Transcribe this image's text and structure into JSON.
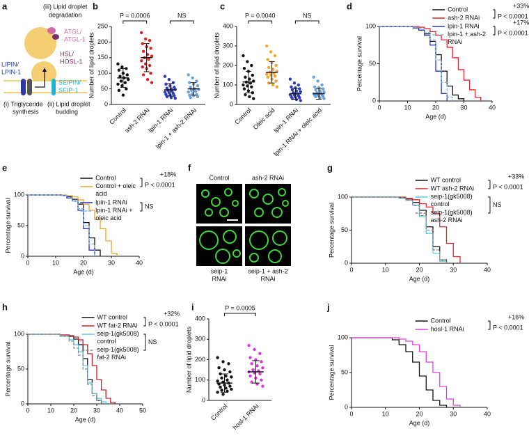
{
  "diagram": {
    "panel": "a",
    "labels": {
      "degradation": [
        "(iii) Lipid droplet",
        "degradation"
      ],
      "atgl": [
        "ATGL/",
        "ATGL-1"
      ],
      "hsl": [
        "HSL/",
        "HOSL-1"
      ],
      "lipin": [
        "LIPIN/",
        "LPIN-1"
      ],
      "seipin": [
        "SEIPIN/",
        "SEIP-1"
      ],
      "synthesis": [
        "(i) Triglyceride",
        "synthesis"
      ],
      "budding": [
        "(ii) Lipid droplet",
        "budding"
      ]
    }
  },
  "micrographs": {
    "panel": "f",
    "labels": [
      [
        "Control"
      ],
      [
        "ash-2 RNAi"
      ],
      [
        "seip-1",
        "RNAi"
      ],
      [
        "seip-1 + ash-2",
        "RNAi"
      ]
    ]
  },
  "chart_data": [
    {
      "panel": "b",
      "type": "dotplot",
      "y_label": "Number of lipid droplets",
      "categories": [
        "Control",
        "ash-2 RNAi",
        "lpin-1 RNAi",
        "lpin-1 + ash-2 RNAi"
      ],
      "colors": [
        "#111111",
        "#e02020",
        "#2b3ac0",
        "#6ba3d6"
      ],
      "values": [
        [
          130,
          120,
          115,
          110,
          100,
          95,
          90,
          85,
          80,
          75,
          70,
          65,
          60,
          50,
          45,
          30
        ],
        [
          230,
          210,
          205,
          195,
          185,
          180,
          170,
          160,
          155,
          150,
          145,
          140,
          130,
          125,
          120,
          115,
          100,
          95,
          80,
          70
        ],
        [
          90,
          80,
          70,
          65,
          60,
          55,
          52,
          50,
          48,
          45,
          42,
          40,
          38,
          35,
          32,
          30,
          28,
          25,
          22,
          20
        ],
        [
          95,
          85,
          75,
          70,
          65,
          60,
          55,
          50,
          48,
          45,
          42,
          40,
          35,
          32,
          30,
          28,
          25,
          22
        ]
      ],
      "means": [
        85,
        150,
        47,
        50
      ],
      "sds": [
        30,
        45,
        20,
        20
      ],
      "ylim": [
        0,
        250
      ],
      "yticks": [
        0,
        50,
        100,
        150,
        200,
        250
      ],
      "comparisons": [
        {
          "groups": [
            "Control",
            "ash-2 RNAi"
          ],
          "label": "P = 0.0006"
        },
        {
          "groups": [
            "lpin-1 RNAi",
            "lpin-1 + ash-2 RNAi"
          ],
          "label": "NS"
        }
      ]
    },
    {
      "panel": "c",
      "type": "dotplot",
      "y_label": "Number of lipid droplets",
      "categories": [
        "Control",
        "Oleic acid",
        "lpin-1 RNAi",
        "lpin-1 RNAi + oleic acid"
      ],
      "colors": [
        "#111111",
        "#f5a623",
        "#2b3ac0",
        "#6ba3d6"
      ],
      "values": [
        [
          250,
          220,
          200,
          185,
          170,
          150,
          140,
          130,
          120,
          115,
          110,
          100,
          95,
          90,
          80,
          70,
          60,
          50,
          40,
          30
        ],
        [
          300,
          270,
          250,
          230,
          215,
          200,
          190,
          180,
          170,
          165,
          160,
          155,
          150,
          145,
          140,
          130,
          120,
          110,
          100,
          90
        ],
        [
          130,
          110,
          100,
          90,
          85,
          80,
          75,
          70,
          65,
          60,
          55,
          50,
          48,
          45,
          40,
          38,
          35,
          30,
          25,
          20
        ],
        [
          140,
          120,
          100,
          90,
          85,
          80,
          75,
          70,
          65,
          60,
          58,
          55,
          52,
          50,
          48,
          45,
          42,
          40,
          35,
          30
        ]
      ],
      "means": [
        115,
        165,
        55,
        55
      ],
      "sds": [
        55,
        55,
        28,
        28
      ],
      "ylim": [
        0,
        400
      ],
      "yticks": [
        0,
        100,
        200,
        300,
        400
      ],
      "comparisons": [
        {
          "groups": [
            "Control",
            "Oleic acid"
          ],
          "label": "P = 0.0040"
        },
        {
          "groups": [
            "lpin-1 RNAi",
            "lpin-1 RNAi + oleic acid"
          ],
          "label": "NS"
        }
      ]
    },
    {
      "panel": "d",
      "type": "survival",
      "y_label": "Percentage survival",
      "x_label": "Age (d)",
      "x": [
        0,
        10,
        12,
        14,
        16,
        18,
        20,
        22,
        24,
        26,
        28,
        30,
        32,
        34,
        36,
        38
      ],
      "series": [
        {
          "name": "Control",
          "color": "#111111",
          "linestyle": "solid",
          "values": [
            100,
            100,
            98,
            95,
            90,
            80,
            62,
            40,
            20,
            8,
            3,
            0,
            null,
            null,
            null,
            null
          ]
        },
        {
          "name": "ash-2 RNAi",
          "color": "#e8242c",
          "linestyle": "solid",
          "values": [
            100,
            100,
            100,
            99,
            97,
            93,
            88,
            82,
            72,
            58,
            42,
            28,
            15,
            5,
            0,
            null
          ]
        },
        {
          "name": "lpin-1 RNAi",
          "color": "#2433c4",
          "linestyle": "solid",
          "values": [
            100,
            100,
            98,
            95,
            88,
            75,
            40,
            10,
            0,
            null,
            null,
            null,
            null,
            null,
            null,
            null
          ]
        },
        {
          "name": "lpin-1 + ash-2 RNAi",
          "color": "#7fb3e0",
          "linestyle": "dashed",
          "values": [
            100,
            100,
            99,
            97,
            92,
            82,
            55,
            25,
            5,
            0,
            null,
            null,
            null,
            null,
            null,
            null
          ]
        }
      ],
      "xlim": [
        0,
        40
      ],
      "xticks": [
        0,
        10,
        20,
        30,
        40
      ],
      "ylim": [
        0,
        100
      ],
      "yticks": [
        0,
        50,
        100
      ],
      "legend": "upper right",
      "brackets": [
        {
          "series": [
            "Control",
            "ash-2 RNAi"
          ],
          "change": "+33%",
          "p": "P < 0.0001"
        },
        {
          "series": [
            "lpin-1 RNAi",
            "lpin-1 + ash-2 RNAi"
          ],
          "change": "+17%",
          "p": "P < 0.0001"
        }
      ]
    },
    {
      "panel": "e",
      "type": "survival",
      "y_label": "Percentage survival",
      "x_label": "Age (d)",
      "x": [
        0,
        10,
        12,
        14,
        16,
        18,
        20,
        22,
        24,
        26,
        28,
        30,
        32
      ],
      "series": [
        {
          "name": "Control",
          "color": "#111111",
          "linestyle": "solid",
          "values": [
            100,
            100,
            99,
            97,
            93,
            85,
            55,
            30,
            10,
            0,
            null,
            null,
            null
          ]
        },
        {
          "name": "Control + oleic acid",
          "color": "#f0a030",
          "linestyle": "solid",
          "values": [
            100,
            100,
            100,
            99,
            97,
            92,
            85,
            75,
            60,
            45,
            25,
            5,
            0
          ]
        },
        {
          "name": "lpin-1 RNAi",
          "color": "#2433c4",
          "linestyle": "solid",
          "values": [
            100,
            100,
            99,
            95,
            90,
            75,
            45,
            10,
            0,
            null,
            null,
            null,
            null
          ]
        },
        {
          "name": "lpin-1 RNAi + oleic acid",
          "color": "#7fb3e0",
          "linestyle": "dashed",
          "values": [
            100,
            100,
            99,
            96,
            90,
            78,
            50,
            20,
            0,
            null,
            null,
            null,
            null
          ]
        }
      ],
      "xlim": [
        0,
        40
      ],
      "xticks": [
        0,
        10,
        20,
        30,
        40
      ],
      "ylim": [
        0,
        100
      ],
      "yticks": [
        0,
        50,
        100
      ],
      "legend": "upper right",
      "brackets": [
        {
          "series": [
            "Control",
            "Control + oleic acid"
          ],
          "change": "+18%",
          "p": "P < 0.0001"
        },
        {
          "series": [
            "lpin-1 RNAi",
            "lpin-1 RNAi + oleic acid"
          ],
          "p": "NS"
        }
      ]
    },
    {
      "panel": "g",
      "type": "survival",
      "y_label": "Percentage survival",
      "x_label": "Age (d)",
      "x": [
        0,
        10,
        14,
        16,
        18,
        20,
        22,
        24,
        26,
        28,
        30,
        32
      ],
      "series": [
        {
          "name": "WT control",
          "color": "#111111",
          "linestyle": "solid",
          "values": [
            100,
            100,
            99,
            97,
            92,
            80,
            55,
            25,
            5,
            0,
            null,
            null
          ]
        },
        {
          "name": "WT ash-2 RNAi",
          "color": "#e8242c",
          "linestyle": "solid",
          "values": [
            100,
            100,
            100,
            98,
            96,
            90,
            85,
            75,
            55,
            30,
            10,
            0
          ]
        },
        {
          "name": "seip-1(gk5008) control",
          "color": "#58c8e8",
          "linestyle": "solid",
          "values": [
            100,
            100,
            98,
            95,
            88,
            70,
            45,
            15,
            3,
            0,
            null,
            null
          ]
        },
        {
          "name": "seip-1(gk5008) ash-2 RNAi",
          "color": "#888888",
          "linestyle": "dashed",
          "values": [
            100,
            100,
            99,
            95,
            87,
            72,
            50,
            20,
            5,
            0,
            null,
            null
          ]
        }
      ],
      "xlim": [
        0,
        40
      ],
      "xticks": [
        0,
        10,
        20,
        30,
        40
      ],
      "ylim": [
        0,
        100
      ],
      "yticks": [
        0,
        50,
        100
      ],
      "legend": "upper right",
      "brackets": [
        {
          "series": [
            "WT control",
            "WT ash-2 RNAi"
          ],
          "change": "+33%",
          "p": "P < 0.0001"
        },
        {
          "series": [
            "seip-1(gk5008) control",
            "seip-1(gk5008) ash-2 RNAi"
          ],
          "p": "NS"
        }
      ]
    },
    {
      "panel": "h",
      "type": "survival",
      "y_label": "Percentage survival",
      "x_label": "Age (d)",
      "x": [
        0,
        10,
        14,
        18,
        20,
        22,
        24,
        26,
        28,
        30,
        32,
        34,
        36,
        38
      ],
      "series": [
        {
          "name": "WT control",
          "color": "#111111",
          "linestyle": "solid",
          "values": [
            100,
            100,
            99,
            97,
            93,
            85,
            65,
            35,
            15,
            5,
            0,
            null,
            null,
            null
          ]
        },
        {
          "name": "WT fat-2 RNAi",
          "color": "#c8202a",
          "linestyle": "solid",
          "values": [
            100,
            100,
            99,
            98,
            96,
            92,
            85,
            72,
            55,
            35,
            20,
            8,
            2,
            0
          ]
        },
        {
          "name": "seip-1(gk5008) control",
          "color": "#58c8e8",
          "linestyle": "solid",
          "values": [
            100,
            100,
            97,
            92,
            85,
            75,
            55,
            30,
            15,
            8,
            3,
            0,
            null,
            null
          ]
        },
        {
          "name": "seip-1(gk5008) fat-2 RNAi",
          "color": "#888888",
          "linestyle": "dashed",
          "values": [
            100,
            100,
            97,
            90,
            80,
            70,
            50,
            28,
            12,
            5,
            0,
            null,
            null,
            null
          ]
        }
      ],
      "xlim": [
        0,
        50
      ],
      "xticks": [
        0,
        10,
        20,
        30,
        40,
        50
      ],
      "ylim": [
        0,
        100
      ],
      "yticks": [
        0,
        50,
        100
      ],
      "legend": "upper right",
      "brackets": [
        {
          "series": [
            "WT control",
            "WT fat-2 RNAi"
          ],
          "change": "+32%",
          "p": "P < 0.0001"
        },
        {
          "series": [
            "seip-1(gk5008) control",
            "seip-1(gk5008) fat-2 RNAi"
          ],
          "p": "NS"
        }
      ]
    },
    {
      "panel": "i",
      "type": "dotplot",
      "y_label": "Number of lipid droplets",
      "categories": [
        "Control",
        "hosl-1 RNAi"
      ],
      "colors": [
        "#111111",
        "#d63ad6"
      ],
      "values": [
        [
          210,
          190,
          180,
          160,
          150,
          140,
          130,
          120,
          115,
          110,
          100,
          95,
          90,
          85,
          80,
          75,
          70,
          65,
          60,
          55,
          50,
          45,
          40,
          30
        ],
        [
          270,
          250,
          230,
          210,
          200,
          190,
          180,
          170,
          160,
          150,
          145,
          140,
          135,
          130,
          120,
          110,
          100,
          90,
          80,
          70
        ]
      ],
      "means": [
        85,
        140
      ],
      "sds": [
        45,
        55
      ],
      "ylim": [
        0,
        400
      ],
      "yticks": [
        0,
        100,
        200,
        300,
        400
      ],
      "comparisons": [
        {
          "groups": [
            "Control",
            "hosl-1 RNAi"
          ],
          "label": "P = 0.0005"
        }
      ]
    },
    {
      "panel": "j",
      "type": "survival",
      "y_label": "Percentage survival",
      "x_label": "Age (d)",
      "x": [
        0,
        10,
        12,
        14,
        16,
        18,
        20,
        22,
        24,
        26,
        28,
        30,
        32
      ],
      "series": [
        {
          "name": "Control",
          "color": "#111111",
          "linestyle": "solid",
          "values": [
            100,
            100,
            97,
            90,
            80,
            65,
            45,
            25,
            10,
            3,
            0,
            null,
            null
          ]
        },
        {
          "name": "hosl-1 RNAi",
          "color": "#e040e0",
          "linestyle": "solid",
          "values": [
            100,
            100,
            100,
            98,
            95,
            90,
            80,
            65,
            50,
            30,
            12,
            3,
            0
          ]
        }
      ],
      "xlim": [
        0,
        40
      ],
      "xticks": [
        0,
        10,
        20,
        30,
        40
      ],
      "ylim": [
        0,
        100
      ],
      "yticks": [
        0,
        50,
        100
      ],
      "legend": "upper right",
      "brackets": [
        {
          "series": [
            "Control",
            "hosl-1 RNAi"
          ],
          "change": "+16%",
          "p": "P < 0.0001"
        }
      ]
    }
  ]
}
